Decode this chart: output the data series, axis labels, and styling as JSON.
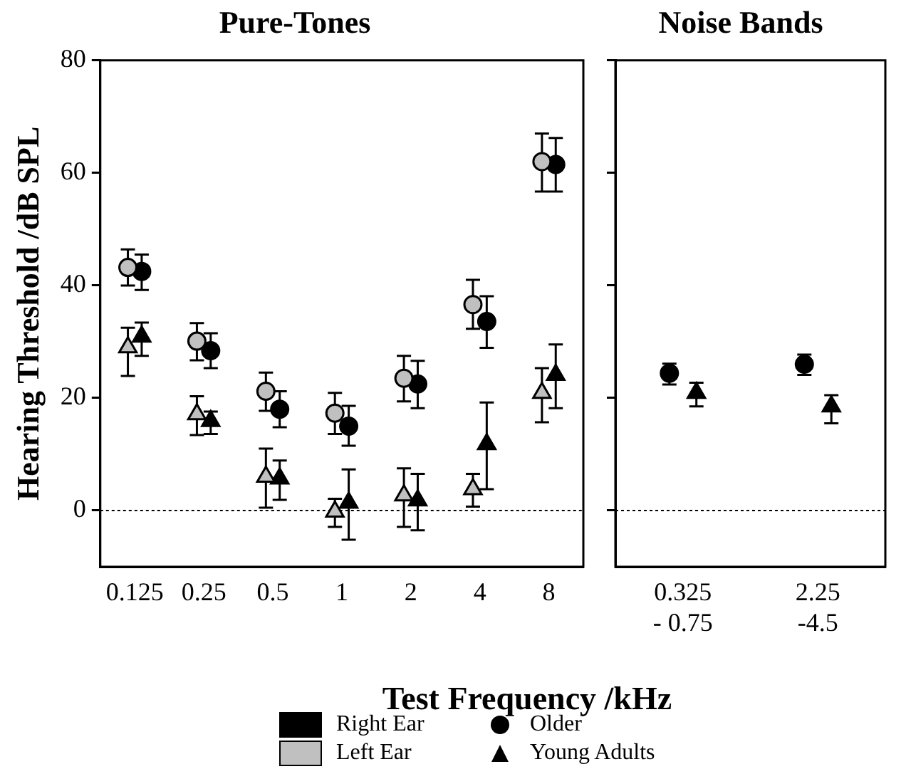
{
  "chart_data": [
    {
      "type": "scatter",
      "title": "Pure-Tones",
      "xlabel": "Test Frequency /kHz",
      "ylabel": "Hearing Threshold /dB SPL",
      "categories": [
        "0.125",
        "0.25",
        "0.5",
        "1",
        "2",
        "4",
        "8"
      ],
      "ylim": [
        -10,
        80
      ],
      "yticks": [
        0,
        20,
        40,
        60,
        80
      ],
      "grid": false,
      "legend": false,
      "ref_lines": [
        {
          "axis": "y",
          "value": 0,
          "line_style": "dotted",
          "color": "#000000"
        }
      ],
      "series": [
        {
          "color": "#c0c0c0",
          "marker": "circle",
          "values": [
            43.2,
            30.1,
            21.2,
            17.3,
            23.5,
            36.6,
            62
          ],
          "errors": [
            [
              40,
              46.4
            ],
            [
              26.7,
              33.3
            ],
            [
              17.7,
              24.5
            ],
            [
              13.6,
              20.9
            ],
            [
              19.4,
              27.5
            ],
            [
              32.3,
              41
            ],
            [
              56.7,
              67
            ]
          ]
        },
        {
          "color": "#000000",
          "marker": "circle",
          "values": [
            42.5,
            28.4,
            18,
            15,
            22.5,
            33.6,
            61.5
          ],
          "errors": [
            [
              39.2,
              45.5
            ],
            [
              25.3,
              31.5
            ],
            [
              14.8,
              21.2
            ],
            [
              11.5,
              18.6
            ],
            [
              18.2,
              26.6
            ],
            [
              28.9,
              38.1
            ],
            [
              56.7,
              66.2
            ]
          ]
        },
        {
          "color": "#c0c0c0",
          "marker": "triangle",
          "values": [
            29,
            17.1,
            6,
            -0.2,
            2.7,
            3.8,
            20.9
          ],
          "errors": [
            [
              23.9,
              32.5
            ],
            [
              13.4,
              20.3
            ],
            [
              0.5,
              11
            ],
            [
              -2.9,
              2.1
            ],
            [
              -2.9,
              7.5
            ],
            [
              0.7,
              6.5
            ],
            [
              15.7,
              25.3
            ]
          ]
        },
        {
          "color": "#000000",
          "marker": "triangle",
          "values": [
            30.9,
            15.9,
            5.7,
            1.4,
            1.8,
            11.8,
            24.1
          ],
          "errors": [
            [
              27.5,
              33.4
            ],
            [
              13.6,
              17.6
            ],
            [
              1.9,
              8.9
            ],
            [
              -5.2,
              7.3
            ],
            [
              -3.5,
              6.5
            ],
            [
              3.8,
              19.2
            ],
            [
              18.2,
              29.5
            ]
          ]
        }
      ],
      "annotations": [
        "Right Ear",
        "Older",
        "Left Ear",
        "Young Adults"
      ]
    },
    {
      "type": "scatter",
      "title": "Noise Bands",
      "categories": [
        "0.325\n- 0.75",
        "2.25\n-4.5"
      ],
      "ylim": [
        -10,
        80
      ],
      "yticks": [
        0,
        20,
        40,
        60,
        80
      ],
      "tick_labels": "x",
      "grid": false,
      "legend": false,
      "ref_lines": [
        {
          "axis": "y",
          "value": 0,
          "line_style": "dotted",
          "color": "#000000"
        }
      ],
      "series": [
        {
          "color": "#000000",
          "marker": "circle",
          "values": [
            24.4,
            26
          ],
          "errors": [
            [
              22.4,
              26.1
            ],
            [
              24.1,
              27.7
            ]
          ]
        },
        {
          "color": "#000000",
          "marker": "triangle",
          "values": [
            20.9,
            18.5
          ],
          "errors": [
            [
              18.5,
              22.7
            ],
            [
              15.5,
              20.5
            ]
          ]
        }
      ]
    }
  ]
}
